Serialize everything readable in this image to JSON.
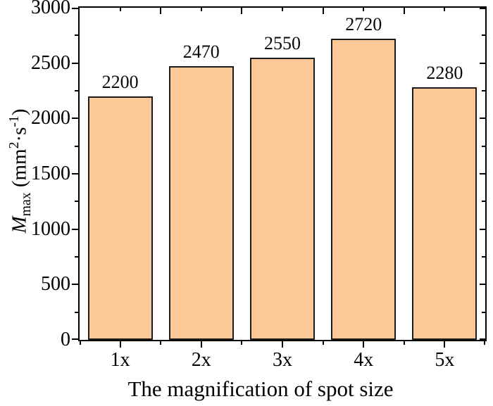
{
  "chart_data": {
    "type": "bar",
    "categories": [
      "1x",
      "2x",
      "3x",
      "4x",
      "5x"
    ],
    "values": [
      2200,
      2470,
      2550,
      2720,
      2280
    ],
    "bar_labels": [
      "2200",
      "2470",
      "2550",
      "2720",
      "2280"
    ],
    "title": "",
    "xlabel": "The magnification of spot size",
    "ylabel": "Mmax (mm2·s-1)",
    "ylabel_parts": {
      "variable": "M",
      "subscript": "max",
      "unit_prefix": " (mm",
      "exponent": "2",
      "unit_mid": "·s",
      "inverse_exponent": "-1",
      "unit_suffix": ")"
    },
    "ylim": [
      0,
      3000
    ],
    "ytick_major_step": 500,
    "ytick_minor_step": 250,
    "ytick_labels": [
      "0",
      "500",
      "1000",
      "1500",
      "2000",
      "2500",
      "3000"
    ],
    "grid": false,
    "legend": null,
    "colors": {
      "bar_fill": "#fbc997",
      "bar_border": "#1c1c1c",
      "axis": "#000000",
      "text": "#000000"
    }
  }
}
